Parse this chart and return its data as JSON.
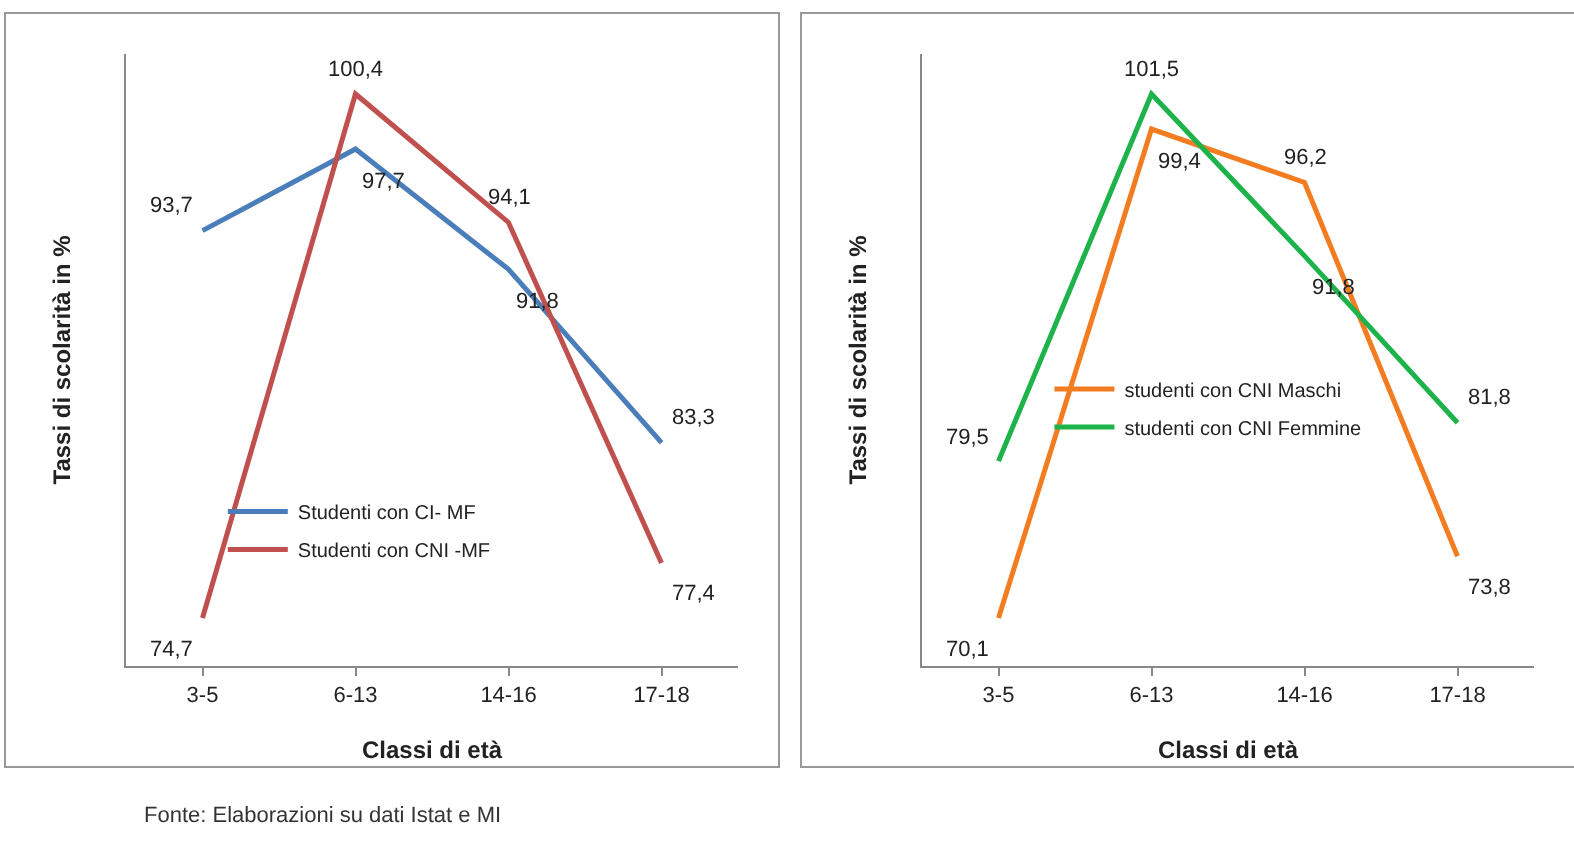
{
  "chart_data": [
    {
      "type": "line",
      "xlabel": "Classi di età",
      "ylabel": "Tassi di scolarità in %",
      "categories": [
        "3-5",
        "6-13",
        "14-16",
        "17-18"
      ],
      "series": [
        {
          "name": "Studenti con CI- MF",
          "color": "#4a7ebb",
          "values": [
            93.7,
            97.7,
            91.8,
            83.3
          ],
          "value_labels": [
            "93,7",
            "97,7",
            "91,8",
            "83,3"
          ]
        },
        {
          "name": "Studenti con CNI -MF",
          "color": "#c0504d",
          "values": [
            74.7,
            100.4,
            94.1,
            77.4
          ],
          "value_labels": [
            "74,7",
            "100,4",
            "94,1",
            "77,4"
          ]
        }
      ],
      "legend": "bottom",
      "grid": false,
      "tick_labels": "x",
      "marker": "none"
    },
    {
      "type": "line",
      "xlabel": "Classi di età",
      "ylabel": "Tassi di scolarità in %",
      "categories": [
        "3-5",
        "6-13",
        "14-16",
        "17-18"
      ],
      "series": [
        {
          "name": "studenti con CNI Maschi",
          "color": "#f47c20",
          "values": [
            70.1,
            99.4,
            96.2,
            73.8
          ],
          "value_labels": [
            "70,1",
            "99,4",
            "96,2",
            "73,8"
          ]
        },
        {
          "name": "studenti con CNI Femmine",
          "color": "#1db34a",
          "values": [
            79.5,
            101.5,
            91.8,
            81.8
          ],
          "value_labels": [
            "79,5",
            "101,5",
            "91,8",
            "81,8"
          ]
        }
      ],
      "legend": "left",
      "grid": false,
      "tick_labels": "x",
      "marker": "none",
      "annotations": [
        "Fonte: Elaborazioni su dati Istat e MI"
      ]
    }
  ]
}
